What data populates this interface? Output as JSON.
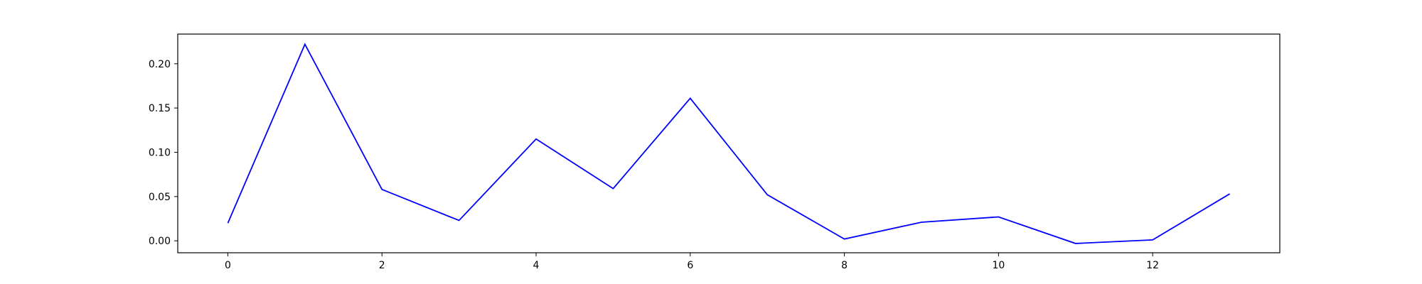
{
  "chart_data": {
    "type": "line",
    "title": "",
    "xlabel": "",
    "ylabel": "",
    "x": [
      0,
      1,
      2,
      3,
      4,
      5,
      6,
      7,
      8,
      9,
      10,
      11,
      12,
      13
    ],
    "series": [
      {
        "color": "#0000ff",
        "values": [
          0.02,
          0.222,
          0.058,
          0.023,
          0.115,
          0.059,
          0.161,
          0.052,
          0.002,
          0.021,
          0.027,
          -0.003,
          0.001,
          0.053
        ]
      }
    ],
    "xlim": [
      -0.65,
      13.65
    ],
    "ylim": [
      -0.0135,
      0.2335
    ],
    "x_ticks": [
      0,
      2,
      4,
      6,
      8,
      10,
      12
    ],
    "x_tick_labels": [
      "0",
      "2",
      "4",
      "6",
      "8",
      "10",
      "12"
    ],
    "y_ticks": [
      0.0,
      0.05,
      0.1,
      0.15,
      0.2
    ],
    "y_tick_labels": [
      "0.00",
      "0.05",
      "0.10",
      "0.15",
      "0.20"
    ],
    "grid": false,
    "legend": "none"
  }
}
